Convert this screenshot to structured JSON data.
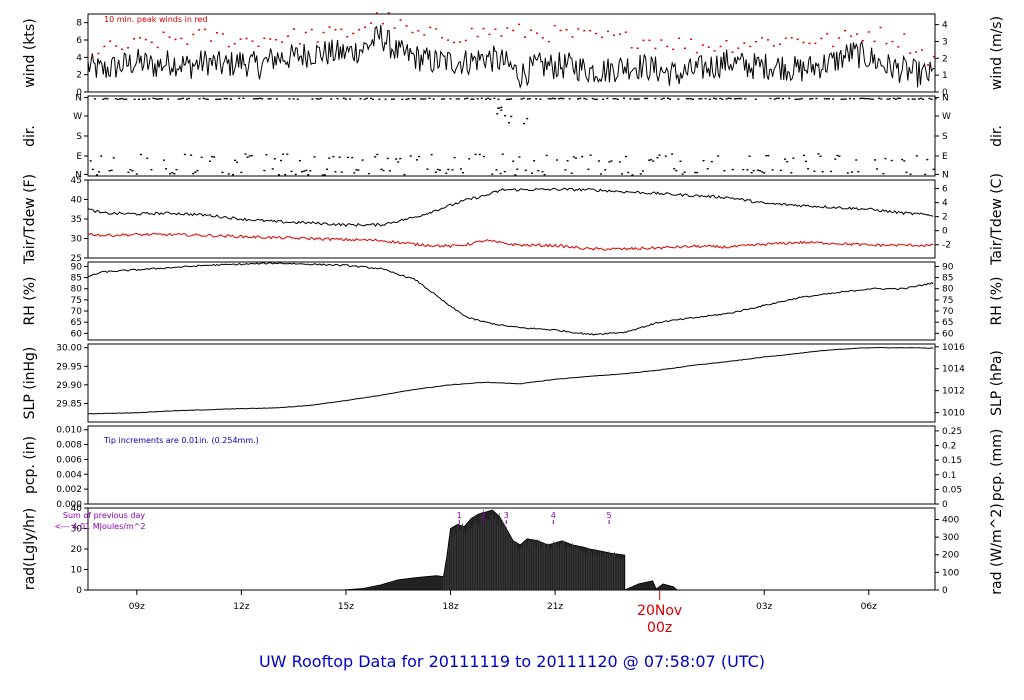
{
  "title": "UW Rooftop Data for 20111119  to  20111120 @ 07:58:07  (UTC)",
  "colors": {
    "peak": "#dd0000",
    "dew": "#dd0000",
    "note": "#0000bb",
    "rad_note": "#8800aa",
    "title": "#0000cc",
    "date": "#dd0000"
  },
  "date_marker": {
    "line1": "20Nov",
    "line2": "00z"
  },
  "chart_data": [
    {
      "type": "line",
      "id": "wind",
      "ylabel_left": "wind (kts)",
      "ylabel_right": "wind (m/s)",
      "left_ticks": [
        "0",
        "2",
        "4",
        "6",
        "8"
      ],
      "right_ticks": [
        "0",
        "1",
        "2",
        "3",
        "4"
      ],
      "ylim": [
        0,
        9
      ],
      "annotation": "10 min. peak winds in red",
      "series": [
        {
          "x": [
            7.6,
            8.0,
            8.5,
            9.0,
            9.5,
            10.0,
            10.5,
            11.0,
            11.5,
            12.0,
            12.5,
            13.0,
            13.5,
            14.0,
            14.5,
            15.0,
            15.5,
            16.0,
            16.5,
            17.0,
            17.5,
            18.0,
            18.5,
            19.0,
            19.5,
            20.0,
            20.5,
            21.0,
            21.5,
            22.0,
            22.5,
            23.0,
            23.5,
            24.0,
            24.5,
            25.0,
            25.5,
            26.0,
            26.5,
            27.0,
            27.5,
            28.0,
            28.5,
            29.0,
            29.5,
            30.0,
            30.5,
            31.0,
            31.5,
            31.9
          ],
          "values": [
            3,
            2.5,
            3,
            3.5,
            3,
            3.5,
            3,
            3.5,
            3,
            3.5,
            3,
            4,
            4,
            4.5,
            4.5,
            4.5,
            5,
            6.5,
            4.5,
            4,
            3.5,
            3.5,
            3.5,
            4,
            3.5,
            2,
            3,
            3,
            3,
            2.5,
            2.5,
            3,
            3,
            2.5,
            2,
            2.5,
            3,
            3.5,
            3,
            3,
            3,
            2.5,
            3,
            3.5,
            4.5,
            4,
            3,
            2.5,
            2,
            2
          ]
        },
        {
          "x": [
            7.8,
            9.0,
            10.0,
            11.0,
            12.0,
            13.0,
            14.0,
            15.0,
            16.0,
            17.0,
            18.0,
            19.0,
            20.0,
            21.0,
            22.0,
            23.0,
            24.0,
            25.0,
            26.0,
            27.0,
            28.0,
            29.0,
            30.0,
            31.0,
            31.7
          ],
          "values": [
            4.8,
            5.5,
            6.2,
            6.5,
            6.0,
            6.4,
            6.6,
            6.8,
            8.8,
            6.6,
            6.6,
            7.0,
            7.0,
            6.8,
            6.4,
            6.2,
            6.0,
            5.4,
            5.6,
            6.0,
            6.2,
            6.0,
            7.0,
            6.0,
            4.0
          ]
        }
      ]
    },
    {
      "type": "scatter",
      "id": "dir",
      "ylabel_left": "dir.",
      "ylabel_right": "dir.",
      "left_ticks": [
        "N",
        "E",
        "S",
        "W",
        "N"
      ],
      "right_ticks": [
        "N",
        "E",
        "S",
        "W",
        "N"
      ],
      "ylim": [
        0,
        360
      ]
    },
    {
      "type": "line",
      "id": "temp",
      "ylabel_left": "Tair/Tdew (F)",
      "ylabel_right": "Tair/Tdew (C)",
      "left_ticks": [
        "25",
        "30",
        "35",
        "40",
        "45"
      ],
      "right_ticks": [
        "-2",
        "0",
        "2",
        "4",
        "6"
      ],
      "ylim": [
        25,
        45
      ],
      "series": [
        {
          "name": "Tair",
          "x": [
            7.6,
            8.0,
            9.0,
            10.0,
            11.0,
            12.0,
            13.0,
            14.0,
            15.0,
            16.0,
            17.0,
            17.5,
            18.0,
            18.5,
            19.0,
            19.5,
            20.0,
            21.0,
            22.0,
            23.0,
            24.0,
            25.0,
            26.0,
            27.0,
            28.0,
            29.0,
            30.0,
            31.0,
            31.8
          ],
          "values": [
            37.5,
            36.5,
            36.3,
            36.5,
            36.0,
            35.0,
            34.3,
            34.0,
            33.5,
            33.5,
            35.5,
            37.0,
            38.5,
            40.0,
            41.0,
            42.5,
            42.5,
            42.6,
            42.5,
            42.0,
            41.5,
            41.0,
            40.5,
            39.0,
            38.5,
            38.0,
            37.5,
            36.5,
            36.0
          ]
        },
        {
          "name": "Tdew",
          "x": [
            7.6,
            8.0,
            9.0,
            10.0,
            11.0,
            12.0,
            13.0,
            14.0,
            15.0,
            16.0,
            17.0,
            18.0,
            18.5,
            19.0,
            19.5,
            20.0,
            21.0,
            22.0,
            23.0,
            24.0,
            25.0,
            26.0,
            27.0,
            28.0,
            29.0,
            30.0,
            31.0,
            31.8
          ],
          "values": [
            31.2,
            30.8,
            31.0,
            31.0,
            30.8,
            30.5,
            30.2,
            30.0,
            29.7,
            29.5,
            28.5,
            28.0,
            28.5,
            29.5,
            28.8,
            28.3,
            28.2,
            27.3,
            27.3,
            27.6,
            28.0,
            27.8,
            28.5,
            29.0,
            28.8,
            28.3,
            28.3,
            28.2
          ]
        }
      ]
    },
    {
      "type": "line",
      "id": "rh",
      "ylabel_left": "RH (%)",
      "ylabel_right": "RH (%)",
      "left_ticks": [
        "60",
        "65",
        "70",
        "75",
        "80",
        "85",
        "90"
      ],
      "right_ticks": [
        "60",
        "65",
        "70",
        "75",
        "80",
        "85",
        "90"
      ],
      "ylim": [
        57,
        92
      ],
      "series": [
        {
          "x": [
            7.6,
            8.0,
            9.0,
            10.0,
            11.0,
            12.0,
            13.0,
            14.0,
            15.0,
            16.0,
            17.0,
            17.5,
            18.0,
            18.5,
            19.0,
            19.5,
            20.0,
            21.0,
            22.0,
            23.0,
            24.0,
            25.0,
            26.0,
            27.0,
            28.0,
            29.0,
            30.0,
            31.0,
            31.8
          ],
          "values": [
            85.5,
            87.5,
            88.5,
            89.5,
            90.5,
            91.0,
            91.5,
            91.0,
            90.5,
            89.0,
            84.0,
            78.0,
            72.0,
            67.0,
            65.0,
            63.5,
            62.5,
            61.5,
            59.5,
            60.5,
            65.0,
            67.0,
            69.0,
            72.5,
            76.0,
            78.0,
            80.0,
            80.0,
            82.5
          ]
        }
      ]
    },
    {
      "type": "line",
      "id": "slp",
      "ylabel_left": "SLP (inHg)",
      "ylabel_right": "SLP (hPa)",
      "left_ticks": [
        "29.85",
        "29.90",
        "29.95",
        "30.00"
      ],
      "right_ticks": [
        "1010",
        "1012",
        "1014",
        "1016"
      ],
      "ylim": [
        29.8,
        30.01
      ],
      "series": [
        {
          "x": [
            7.6,
            8.0,
            9.0,
            10.0,
            11.0,
            12.0,
            13.0,
            14.0,
            15.0,
            16.0,
            17.0,
            18.0,
            19.0,
            19.5,
            20.0,
            21.0,
            22.0,
            23.0,
            24.0,
            25.0,
            26.0,
            27.0,
            28.0,
            29.0,
            30.0,
            31.0,
            31.8
          ],
          "values": [
            29.822,
            29.823,
            29.825,
            29.83,
            29.833,
            29.836,
            29.838,
            29.845,
            29.858,
            29.872,
            29.888,
            29.9,
            29.907,
            29.905,
            29.903,
            29.915,
            29.923,
            29.93,
            29.94,
            29.953,
            29.963,
            29.975,
            29.985,
            29.995,
            30.0,
            30.0,
            29.999
          ]
        }
      ]
    },
    {
      "type": "line",
      "id": "pcp",
      "ylabel_left": "pcp. (in)",
      "ylabel_right": "pcp. (mm)",
      "left_ticks": [
        "0.000",
        "0.002",
        "0.004",
        "0.006",
        "0.008",
        "0.010"
      ],
      "right_ticks": [
        "0",
        "0.05",
        "0.1",
        "0.15",
        "0.2",
        "0.25"
      ],
      "ylim": [
        0,
        0.0105
      ],
      "annotation": "Tip increments are 0.01in. (0.254mm.)",
      "series": [
        {
          "x": [
            7.6,
            31.9
          ],
          "values": [
            0,
            0
          ]
        }
      ]
    },
    {
      "type": "area",
      "id": "rad",
      "ylabel_left": "rad(Lgly/hr)",
      "ylabel_right": "rad (W/m^2)",
      "left_ticks": [
        "0",
        "10",
        "20",
        "30",
        "40"
      ],
      "right_ticks": [
        "0",
        "100",
        "200",
        "300",
        "400"
      ],
      "ylim": [
        0,
        40
      ],
      "annotation_line1": "Sum of previous day",
      "annotation_line2": "<--- 4.01 MJoules/m^2",
      "markers": [
        "1",
        "2",
        "3",
        "4",
        "5"
      ],
      "marker_x": [
        18.25,
        18.95,
        19.6,
        20.95,
        22.55
      ],
      "series": [
        {
          "x": [
            14.9,
            15.5,
            16.0,
            16.5,
            17.0,
            17.3,
            17.6,
            17.8,
            17.9,
            18.0,
            18.2,
            18.4,
            18.6,
            18.8,
            19.0,
            19.2,
            19.4,
            19.6,
            19.8,
            20.0,
            20.2,
            20.5,
            20.8,
            21.0,
            21.2,
            21.5,
            21.8,
            22.0,
            22.3,
            22.6,
            23.0,
            23.0,
            23.4,
            23.8,
            23.9,
            24.1,
            24.4,
            24.5
          ],
          "values": [
            0,
            0.8,
            2.5,
            5,
            6,
            6.5,
            7,
            6.5,
            17,
            30,
            32,
            31,
            35,
            37,
            38,
            39,
            36,
            30,
            24,
            22,
            25,
            24,
            22,
            23,
            24,
            22,
            21,
            20,
            19,
            18,
            17,
            0,
            3,
            4.5,
            0.5,
            3,
            1.5,
            0
          ]
        }
      ]
    }
  ],
  "x_ticks": [
    "09z",
    "12z",
    "15z",
    "18z",
    "21z",
    "03z",
    "06z"
  ],
  "x_tick_hours": [
    9,
    12,
    15,
    18,
    21,
    27,
    30
  ],
  "x_range": [
    7.6,
    31.9
  ]
}
